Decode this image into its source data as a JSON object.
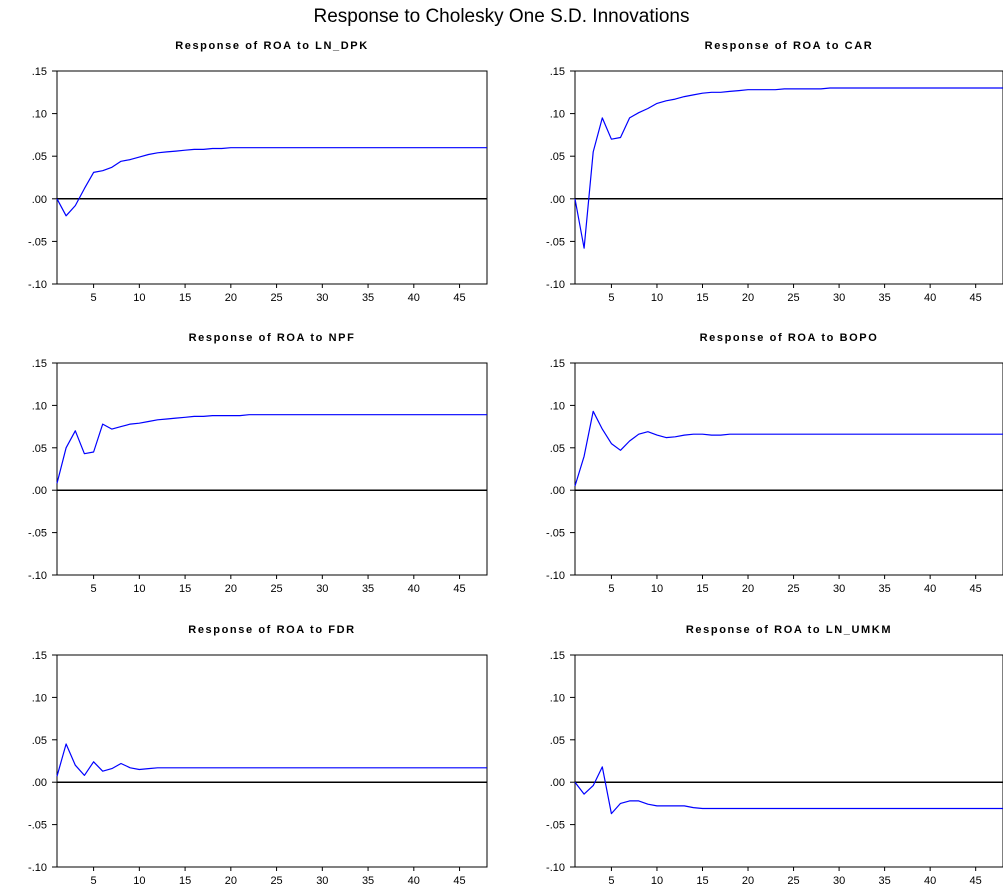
{
  "figure": {
    "title": "Response to Cholesky One S.D. Innovations"
  },
  "chart_data": [
    {
      "type": "line",
      "title": "Response of ROA to LN_DPK",
      "xlim": [
        1,
        48
      ],
      "ylim": [
        -0.1,
        0.15
      ],
      "xticks": [
        5,
        10,
        15,
        20,
        25,
        30,
        35,
        40,
        45
      ],
      "yticks": [
        0.15,
        0.1,
        0.05,
        0.0,
        -0.05,
        -0.1
      ],
      "ytick_labels": [
        ".15",
        ".10",
        ".05",
        ".00",
        "-.05",
        "-.10"
      ],
      "series": [
        {
          "x": [
            1,
            2,
            3,
            4,
            5,
            6,
            7,
            8,
            9,
            10,
            11,
            12,
            13,
            14,
            15,
            16,
            17,
            18,
            19,
            20,
            21,
            22,
            23,
            24,
            25,
            26,
            27,
            28,
            29,
            30,
            31,
            32,
            33,
            34,
            35,
            36,
            37,
            38,
            39,
            40,
            41,
            42,
            43,
            44,
            45,
            46,
            47,
            48
          ],
          "values": [
            0.0,
            -0.02,
            -0.008,
            0.012,
            0.031,
            0.033,
            0.037,
            0.044,
            0.046,
            0.049,
            0.052,
            0.054,
            0.055,
            0.056,
            0.057,
            0.058,
            0.058,
            0.059,
            0.059,
            0.06,
            0.06,
            0.06,
            0.06,
            0.06,
            0.06,
            0.06,
            0.06,
            0.06,
            0.06,
            0.06,
            0.06,
            0.06,
            0.06,
            0.06,
            0.06,
            0.06,
            0.06,
            0.06,
            0.06,
            0.06,
            0.06,
            0.06,
            0.06,
            0.06,
            0.06,
            0.06,
            0.06,
            0.06
          ]
        }
      ]
    },
    {
      "type": "line",
      "title": "Response of ROA to CAR",
      "xlim": [
        1,
        48
      ],
      "ylim": [
        -0.1,
        0.15
      ],
      "xticks": [
        5,
        10,
        15,
        20,
        25,
        30,
        35,
        40,
        45
      ],
      "yticks": [
        0.15,
        0.1,
        0.05,
        0.0,
        -0.05,
        -0.1
      ],
      "ytick_labels": [
        ".15",
        ".10",
        ".05",
        ".00",
        "-.05",
        "-.10"
      ],
      "series": [
        {
          "x": [
            1,
            2,
            3,
            4,
            5,
            6,
            7,
            8,
            9,
            10,
            11,
            12,
            13,
            14,
            15,
            16,
            17,
            18,
            19,
            20,
            21,
            22,
            23,
            24,
            25,
            26,
            27,
            28,
            29,
            30,
            31,
            32,
            33,
            34,
            35,
            36,
            37,
            38,
            39,
            40,
            41,
            42,
            43,
            44,
            45,
            46,
            47,
            48
          ],
          "values": [
            0.0,
            -0.058,
            0.055,
            0.095,
            0.07,
            0.072,
            0.095,
            0.101,
            0.106,
            0.112,
            0.115,
            0.117,
            0.12,
            0.122,
            0.124,
            0.125,
            0.125,
            0.126,
            0.127,
            0.128,
            0.128,
            0.128,
            0.128,
            0.129,
            0.129,
            0.129,
            0.129,
            0.129,
            0.13,
            0.13,
            0.13,
            0.13,
            0.13,
            0.13,
            0.13,
            0.13,
            0.13,
            0.13,
            0.13,
            0.13,
            0.13,
            0.13,
            0.13,
            0.13,
            0.13,
            0.13,
            0.13,
            0.13
          ]
        }
      ]
    },
    {
      "type": "line",
      "title": "Response of ROA to NPF",
      "xlim": [
        1,
        48
      ],
      "ylim": [
        -0.1,
        0.15
      ],
      "xticks": [
        5,
        10,
        15,
        20,
        25,
        30,
        35,
        40,
        45
      ],
      "yticks": [
        0.15,
        0.1,
        0.05,
        0.0,
        -0.05,
        -0.1
      ],
      "ytick_labels": [
        ".15",
        ".10",
        ".05",
        ".00",
        "-.05",
        "-.10"
      ],
      "series": [
        {
          "x": [
            1,
            2,
            3,
            4,
            5,
            6,
            7,
            8,
            9,
            10,
            11,
            12,
            13,
            14,
            15,
            16,
            17,
            18,
            19,
            20,
            21,
            22,
            23,
            24,
            25,
            26,
            27,
            28,
            29,
            30,
            31,
            32,
            33,
            34,
            35,
            36,
            37,
            38,
            39,
            40,
            41,
            42,
            43,
            44,
            45,
            46,
            47,
            48
          ],
          "values": [
            0.008,
            0.05,
            0.07,
            0.043,
            0.045,
            0.078,
            0.072,
            0.075,
            0.078,
            0.079,
            0.081,
            0.083,
            0.084,
            0.085,
            0.086,
            0.087,
            0.087,
            0.088,
            0.088,
            0.088,
            0.088,
            0.089,
            0.089,
            0.089,
            0.089,
            0.089,
            0.089,
            0.089,
            0.089,
            0.089,
            0.089,
            0.089,
            0.089,
            0.089,
            0.089,
            0.089,
            0.089,
            0.089,
            0.089,
            0.089,
            0.089,
            0.089,
            0.089,
            0.089,
            0.089,
            0.089,
            0.089,
            0.089
          ]
        }
      ]
    },
    {
      "type": "line",
      "title": "Response of ROA to BOPO",
      "xlim": [
        1,
        48
      ],
      "ylim": [
        -0.1,
        0.15
      ],
      "xticks": [
        5,
        10,
        15,
        20,
        25,
        30,
        35,
        40,
        45
      ],
      "yticks": [
        0.15,
        0.1,
        0.05,
        0.0,
        -0.05,
        -0.1
      ],
      "ytick_labels": [
        ".15",
        ".10",
        ".05",
        ".00",
        "-.05",
        "-.10"
      ],
      "series": [
        {
          "x": [
            1,
            2,
            3,
            4,
            5,
            6,
            7,
            8,
            9,
            10,
            11,
            12,
            13,
            14,
            15,
            16,
            17,
            18,
            19,
            20,
            21,
            22,
            23,
            24,
            25,
            26,
            27,
            28,
            29,
            30,
            31,
            32,
            33,
            34,
            35,
            36,
            37,
            38,
            39,
            40,
            41,
            42,
            43,
            44,
            45,
            46,
            47,
            48
          ],
          "values": [
            0.005,
            0.04,
            0.093,
            0.072,
            0.055,
            0.047,
            0.058,
            0.066,
            0.069,
            0.065,
            0.062,
            0.063,
            0.065,
            0.066,
            0.066,
            0.065,
            0.065,
            0.066,
            0.066,
            0.066,
            0.066,
            0.066,
            0.066,
            0.066,
            0.066,
            0.066,
            0.066,
            0.066,
            0.066,
            0.066,
            0.066,
            0.066,
            0.066,
            0.066,
            0.066,
            0.066,
            0.066,
            0.066,
            0.066,
            0.066,
            0.066,
            0.066,
            0.066,
            0.066,
            0.066,
            0.066,
            0.066,
            0.066
          ]
        }
      ]
    },
    {
      "type": "line",
      "title": "Response of ROA to FDR",
      "xlim": [
        1,
        48
      ],
      "ylim": [
        -0.1,
        0.15
      ],
      "xticks": [
        5,
        10,
        15,
        20,
        25,
        30,
        35,
        40,
        45
      ],
      "yticks": [
        0.15,
        0.1,
        0.05,
        0.0,
        -0.05,
        -0.1
      ],
      "ytick_labels": [
        ".15",
        ".10",
        ".05",
        ".00",
        "-.05",
        "-.10"
      ],
      "series": [
        {
          "x": [
            1,
            2,
            3,
            4,
            5,
            6,
            7,
            8,
            9,
            10,
            11,
            12,
            13,
            14,
            15,
            16,
            17,
            18,
            19,
            20,
            21,
            22,
            23,
            24,
            25,
            26,
            27,
            28,
            29,
            30,
            31,
            32,
            33,
            34,
            35,
            36,
            37,
            38,
            39,
            40,
            41,
            42,
            43,
            44,
            45,
            46,
            47,
            48
          ],
          "values": [
            0.007,
            0.045,
            0.02,
            0.008,
            0.024,
            0.013,
            0.016,
            0.022,
            0.017,
            0.015,
            0.016,
            0.017,
            0.017,
            0.017,
            0.017,
            0.017,
            0.017,
            0.017,
            0.017,
            0.017,
            0.017,
            0.017,
            0.017,
            0.017,
            0.017,
            0.017,
            0.017,
            0.017,
            0.017,
            0.017,
            0.017,
            0.017,
            0.017,
            0.017,
            0.017,
            0.017,
            0.017,
            0.017,
            0.017,
            0.017,
            0.017,
            0.017,
            0.017,
            0.017,
            0.017,
            0.017,
            0.017,
            0.017
          ]
        }
      ]
    },
    {
      "type": "line",
      "title": "Response of ROA to LN_UMKM",
      "xlim": [
        1,
        48
      ],
      "ylim": [
        -0.1,
        0.15
      ],
      "xticks": [
        5,
        10,
        15,
        20,
        25,
        30,
        35,
        40,
        45
      ],
      "yticks": [
        0.15,
        0.1,
        0.05,
        0.0,
        -0.05,
        -0.1
      ],
      "ytick_labels": [
        ".15",
        ".10",
        ".05",
        ".00",
        "-.05",
        "-.10"
      ],
      "series": [
        {
          "x": [
            1,
            2,
            3,
            4,
            5,
            6,
            7,
            8,
            9,
            10,
            11,
            12,
            13,
            14,
            15,
            16,
            17,
            18,
            19,
            20,
            21,
            22,
            23,
            24,
            25,
            26,
            27,
            28,
            29,
            30,
            31,
            32,
            33,
            34,
            35,
            36,
            37,
            38,
            39,
            40,
            41,
            42,
            43,
            44,
            45,
            46,
            47,
            48
          ],
          "values": [
            0.0,
            -0.014,
            -0.004,
            0.018,
            -0.037,
            -0.025,
            -0.022,
            -0.022,
            -0.026,
            -0.028,
            -0.028,
            -0.028,
            -0.028,
            -0.03,
            -0.031,
            -0.031,
            -0.031,
            -0.031,
            -0.031,
            -0.031,
            -0.031,
            -0.031,
            -0.031,
            -0.031,
            -0.031,
            -0.031,
            -0.031,
            -0.031,
            -0.031,
            -0.031,
            -0.031,
            -0.031,
            -0.031,
            -0.031,
            -0.031,
            -0.031,
            -0.031,
            -0.031,
            -0.031,
            -0.031,
            -0.031,
            -0.031,
            -0.031,
            -0.031,
            -0.031,
            -0.031,
            -0.031,
            -0.031
          ]
        }
      ]
    }
  ],
  "colors": {
    "line": "#0000ff",
    "axis": "#000000",
    "zero_line": "#000000"
  }
}
